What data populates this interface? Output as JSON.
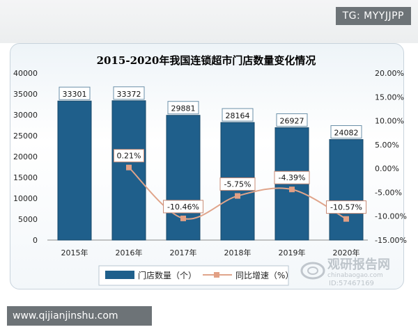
{
  "tag": "TG: MYYJJPP",
  "url": "www.qijianjinshu.com",
  "watermark": {
    "brand": "观研报告网",
    "sub": "chinabaogao.com",
    "id": "ID:57467169"
  },
  "colors": {
    "bar": "#1f5f8b",
    "bar_edge": "#17486a",
    "line": "#e0a48a",
    "marker": "#e2a085",
    "label_border": "#6a8fa8",
    "title": "#1f3f66",
    "axis_text": "#222222"
  },
  "chart_data": {
    "type": "bar",
    "title": "2015-2020年我国连锁超市门店数量变化情况",
    "categories": [
      "2015年",
      "2016年",
      "2017年",
      "2018年",
      "2019年",
      "2020年"
    ],
    "series": [
      {
        "name": "门店数量（个）",
        "type": "bar",
        "axis": "left",
        "values": [
          33301,
          33372,
          29881,
          28164,
          26927,
          24082
        ],
        "labels": [
          "33301",
          "33372",
          "29881",
          "28164",
          "26927",
          "24082"
        ]
      },
      {
        "name": "同比增速（%）",
        "type": "line",
        "axis": "right",
        "values": [
          null,
          0.21,
          -10.46,
          -5.75,
          -4.39,
          -10.57
        ],
        "labels": [
          "",
          "0.21%",
          "-10.46%",
          "-5.75%",
          "-4.39%",
          "-10.57%"
        ]
      }
    ],
    "y_left": {
      "min": 0,
      "max": 40000,
      "ticks": [
        "0",
        "5000",
        "10000",
        "15000",
        "20000",
        "25000",
        "30000",
        "35000",
        "40000"
      ]
    },
    "y_right": {
      "min": -15,
      "max": 20,
      "ticks": [
        "-15.00%",
        "-10.00%",
        "-5.00%",
        "0.00%",
        "5.00%",
        "10.00%",
        "15.00%",
        "20.00%"
      ]
    },
    "grid": false,
    "legend": "bottom"
  }
}
